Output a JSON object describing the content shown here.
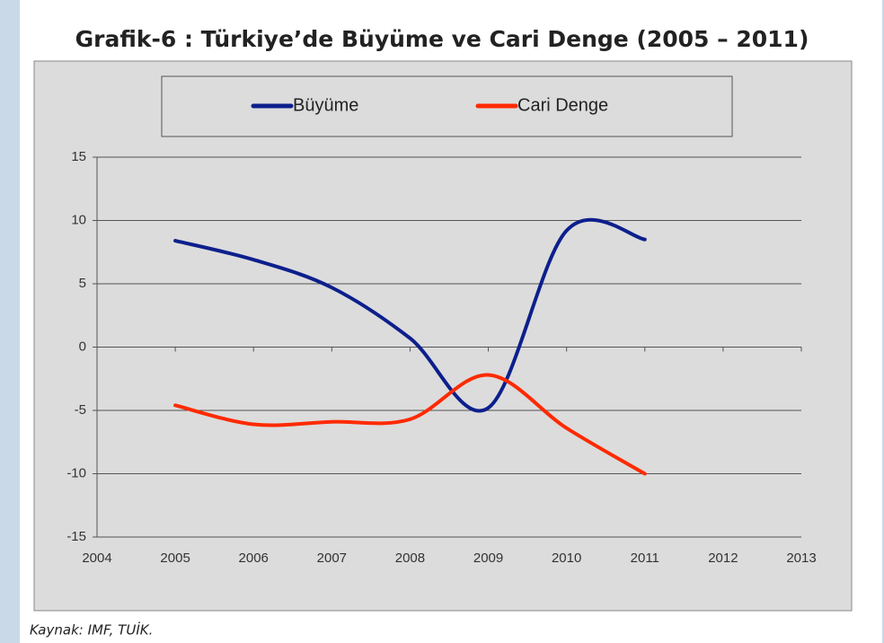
{
  "chart_data": {
    "type": "line",
    "title": "Grafik-6 : Türkiye’de Büyüme ve Cari Denge (2005 – 2011)",
    "source": "Kaynak: IMF, TUİK.",
    "x": [
      2005,
      2006,
      2007,
      2008,
      2009,
      2010,
      2011
    ],
    "series": [
      {
        "name": "Büyüme",
        "color": "#0d1f8c",
        "values": [
          8.4,
          6.9,
          4.7,
          0.7,
          -4.8,
          9.2,
          8.5
        ]
      },
      {
        "name": "Cari Denge",
        "color": "#ff2a00",
        "values": [
          -4.6,
          -6.1,
          -5.9,
          -5.7,
          -2.2,
          -6.4,
          -10.0
        ]
      }
    ],
    "xlim": [
      2004,
      2013
    ],
    "xticks": [
      2004,
      2005,
      2006,
      2007,
      2008,
      2009,
      2010,
      2011,
      2012,
      2013
    ],
    "ylim": [
      -15,
      15
    ],
    "yticks": [
      -15,
      -10,
      -5,
      0,
      5,
      10,
      15
    ],
    "grid": true,
    "legend": "top"
  }
}
